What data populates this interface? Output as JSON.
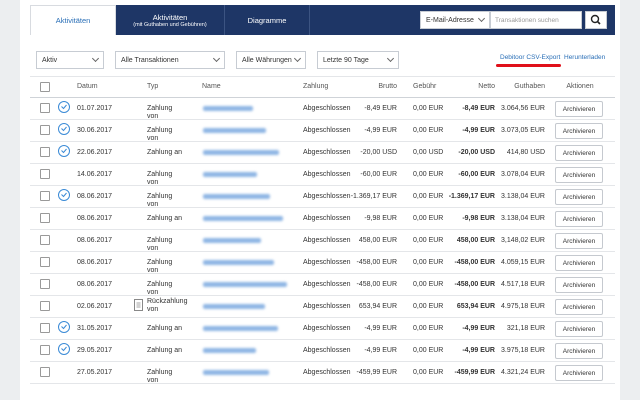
{
  "tabs": [
    {
      "label": "Aktivitäten"
    },
    {
      "label": "Aktivitäten",
      "sublabel": "(mit Guthaben und Gebühren)"
    },
    {
      "label": "Diagramme"
    }
  ],
  "search": {
    "field": "E-Mail-Adresse",
    "placeholder": "Transaktionen suchen"
  },
  "filters": [
    "Aktiv",
    "Alle Transaktionen",
    "Alle Währungen",
    "Letzte 90 Tage"
  ],
  "links": {
    "export": "Debitoor CSV-Export",
    "download": "Herunterladen"
  },
  "table": {
    "headers": [
      "Datum",
      "Typ",
      "Name",
      "Zahlung",
      "Brutto",
      "Gebühr",
      "Netto",
      "Guthaben",
      "Aktionen"
    ],
    "rows": [
      {
        "icon": "check",
        "date": "01.07.2017",
        "type": "Zahlung von",
        "status": "Abgeschlossen",
        "gross": "-8,49 EUR",
        "fee": "0,00 EUR",
        "net": "-8,49 EUR",
        "balance": "3.064,56 EUR",
        "action": "Archivieren"
      },
      {
        "icon": "check",
        "date": "30.06.2017",
        "type": "Zahlung von",
        "status": "Abgeschlossen",
        "gross": "-4,99 EUR",
        "fee": "0,00 EUR",
        "net": "-4,99 EUR",
        "balance": "3.073,05 EUR",
        "action": "Archivieren"
      },
      {
        "icon": "check",
        "date": "22.06.2017",
        "type": "Zahlung an",
        "status": "Abgeschlossen",
        "gross": "-20,00 USD",
        "fee": "0,00 USD",
        "net": "-20,00 USD",
        "balance": "414,80 USD",
        "action": "Archivieren"
      },
      {
        "date": "14.06.2017",
        "type": "Zahlung von",
        "status": "Abgeschlossen",
        "gross": "-60,00 EUR",
        "fee": "0,00 EUR",
        "net": "-60,00 EUR",
        "balance": "3.078,04 EUR",
        "action": "Archivieren"
      },
      {
        "icon": "check",
        "date": "08.06.2017",
        "type": "Zahlung von",
        "status": "Abgeschlossen",
        "gross": "-1.369,17 EUR",
        "fee": "0,00 EUR",
        "net": "-1.369,17 EUR",
        "balance": "3.138,04 EUR",
        "action": "Archivieren"
      },
      {
        "date": "08.06.2017",
        "type": "Zahlung an",
        "status": "Abgeschlossen",
        "gross": "-9,98 EUR",
        "fee": "0,00 EUR",
        "net": "-9,98 EUR",
        "balance": "3.138,04 EUR",
        "action": "Archivieren"
      },
      {
        "date": "08.06.2017",
        "type": "Zahlung von",
        "status": "Abgeschlossen",
        "gross": "458,00 EUR",
        "fee": "0,00 EUR",
        "net": "458,00 EUR",
        "balance": "3,148,02 EUR",
        "action": "Archivieren"
      },
      {
        "date": "08.06.2017",
        "type": "Zahlung von",
        "status": "Abgeschlossen",
        "gross": "-458,00 EUR",
        "fee": "0,00 EUR",
        "net": "-458,00 EUR",
        "balance": "4.059,15 EUR",
        "action": "Archivieren"
      },
      {
        "date": "08.06.2017",
        "type": "Zahlung von",
        "status": "Abgeschlossen",
        "gross": "-458,00 EUR",
        "fee": "0,00 EUR",
        "net": "-458,00 EUR",
        "balance": "4.517,18 EUR",
        "action": "Archivieren"
      },
      {
        "icon": "document",
        "date": "02.06.2017",
        "type": "Rückzahlung von",
        "status": "Abgeschlossen",
        "gross": "653,94 EUR",
        "fee": "0,00 EUR",
        "net": "653,94 EUR",
        "balance": "4.975,18 EUR",
        "action": "Archivieren"
      },
      {
        "icon": "check",
        "date": "31.05.2017",
        "type": "Zahlung an",
        "status": "Abgeschlossen",
        "gross": "-4,99 EUR",
        "fee": "0,00 EUR",
        "net": "-4,99 EUR",
        "balance": "321,18 EUR",
        "action": "Archivieren"
      },
      {
        "icon": "check",
        "date": "29.05.2017",
        "type": "Zahlung an",
        "status": "Abgeschlossen",
        "gross": "-4,99 EUR",
        "fee": "0,00 EUR",
        "net": "-4,99 EUR",
        "balance": "3.975,18 EUR",
        "action": "Archivieren"
      },
      {
        "date": "27.05.2017",
        "type": "Zahlung von",
        "status": "Abgeschlossen",
        "gross": "-459,99 EUR",
        "fee": "0,00 EUR",
        "net": "-459,99 EUR",
        "balance": "4.321,24 EUR",
        "action": "Archivieren"
      }
    ]
  }
}
